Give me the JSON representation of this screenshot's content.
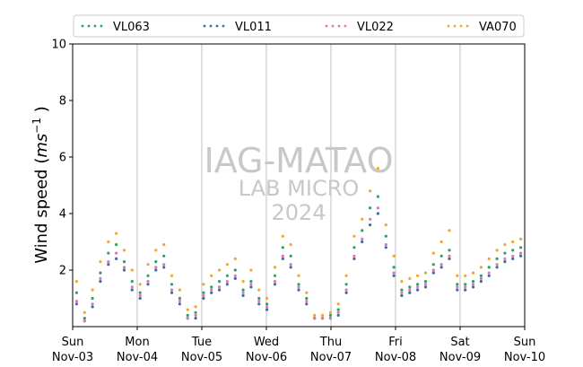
{
  "chart_data": {
    "type": "scatter",
    "ylabel_main": "Wind speed (",
    "ylabel_unit_base": "ms",
    "ylabel_unit_exp": "−1",
    "ylabel_close": " )",
    "ylim": [
      0,
      10
    ],
    "yticks": [
      2,
      4,
      6,
      8,
      10
    ],
    "x_start": "2024-11-03",
    "x_end": "2024-11-10",
    "xtick_days": [
      "Sun",
      "Mon",
      "Tue",
      "Wed",
      "Thu",
      "Fri",
      "Sat",
      "Sun"
    ],
    "xtick_dates": [
      "Nov-03",
      "Nov-04",
      "Nov-05",
      "Nov-06",
      "Nov-07",
      "Nov-08",
      "Nov-09",
      "Nov-10"
    ],
    "grid": "vertical",
    "legend_position": "top",
    "watermark": [
      "IAG-MATAO",
      "LAB MICRO",
      "2024"
    ],
    "series": [
      {
        "name": "VL063",
        "color": "#2ca25f",
        "values": [
          1.2,
          0.3,
          1.0,
          1.9,
          2.6,
          2.9,
          2.3,
          1.6,
          1.2,
          1.8,
          2.3,
          2.5,
          1.5,
          1.0,
          0.4,
          0.5,
          1.2,
          1.4,
          1.6,
          1.8,
          2.0,
          1.3,
          1.6,
          1.0,
          0.8,
          1.8,
          2.8,
          2.5,
          1.5,
          1.0,
          0.3,
          0.3,
          0.4,
          0.6,
          1.5,
          2.8,
          3.4,
          4.2,
          4.6,
          3.2,
          2.1,
          1.3,
          1.4,
          1.5,
          1.6,
          2.2,
          2.5,
          2.7,
          1.5,
          1.5,
          1.6,
          1.8,
          2.1,
          2.4,
          2.6,
          2.7,
          2.8
        ]
      },
      {
        "name": "VL011",
        "color": "#3b6ea5",
        "values": [
          0.8,
          0.2,
          0.7,
          1.6,
          2.2,
          2.4,
          2.0,
          1.3,
          1.0,
          1.5,
          2.0,
          2.1,
          1.2,
          0.8,
          0.3,
          0.3,
          1.0,
          1.2,
          1.3,
          1.5,
          1.7,
          1.1,
          1.4,
          0.8,
          0.6,
          1.5,
          2.4,
          2.1,
          1.3,
          0.8,
          0.3,
          0.3,
          0.3,
          0.4,
          1.2,
          2.4,
          3.0,
          3.6,
          4.0,
          2.8,
          1.8,
          1.1,
          1.2,
          1.3,
          1.4,
          1.9,
          2.1,
          2.4,
          1.3,
          1.3,
          1.4,
          1.6,
          1.8,
          2.1,
          2.3,
          2.4,
          2.5
        ]
      },
      {
        "name": "VL022",
        "color": "#d979b8",
        "values": [
          0.9,
          0.2,
          0.8,
          1.7,
          2.3,
          2.6,
          2.1,
          1.4,
          1.1,
          1.6,
          2.1,
          2.2,
          1.3,
          0.9,
          0.3,
          0.4,
          1.1,
          1.3,
          1.4,
          1.6,
          1.8,
          1.2,
          1.5,
          0.9,
          0.7,
          1.6,
          2.5,
          2.2,
          1.4,
          0.9,
          0.3,
          0.3,
          0.3,
          0.5,
          1.3,
          2.5,
          3.1,
          3.8,
          4.2,
          2.9,
          1.9,
          1.2,
          1.3,
          1.4,
          1.5,
          2.0,
          2.2,
          2.5,
          1.4,
          1.4,
          1.5,
          1.7,
          1.9,
          2.2,
          2.4,
          2.5,
          2.6
        ]
      },
      {
        "name": "VA070",
        "color": "#f4a62a",
        "values": [
          1.6,
          0.5,
          1.3,
          2.3,
          3.0,
          3.3,
          2.7,
          2.0,
          1.5,
          2.2,
          2.7,
          2.9,
          1.8,
          1.3,
          0.6,
          0.7,
          1.5,
          1.8,
          2.0,
          2.2,
          2.4,
          1.6,
          2.0,
          1.3,
          1.0,
          2.1,
          3.2,
          2.9,
          1.8,
          1.2,
          0.4,
          0.4,
          0.5,
          0.8,
          1.8,
          3.2,
          3.8,
          4.8,
          5.6,
          3.6,
          2.5,
          1.6,
          1.7,
          1.8,
          1.9,
          2.6,
          3.0,
          3.4,
          1.8,
          1.8,
          1.9,
          2.1,
          2.4,
          2.7,
          2.9,
          3.0,
          3.1
        ]
      }
    ]
  }
}
